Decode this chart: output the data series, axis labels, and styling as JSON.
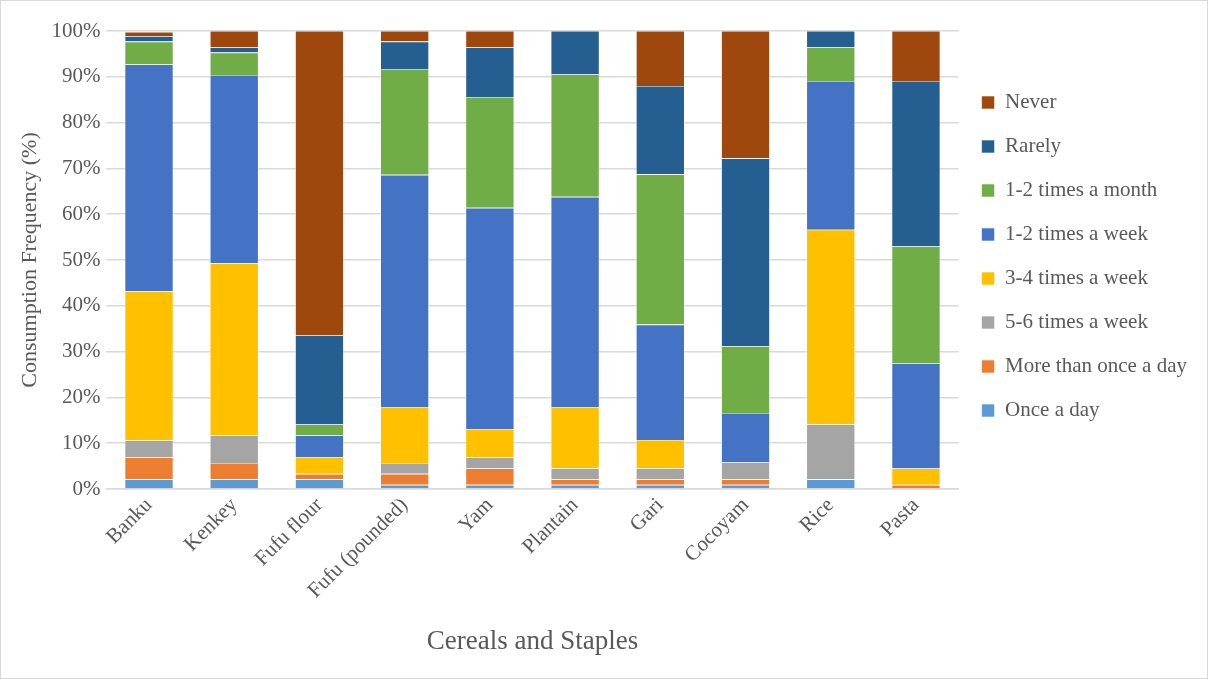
{
  "chart_data": {
    "type": "bar",
    "stacked": true,
    "xlabel": "Cereals and Staples",
    "ylabel": "Consumption Frequency (%)",
    "categories": [
      "Banku",
      "Kenkey",
      "Fufu flour",
      "Fufu (pounded)",
      "Yam",
      "Plantain",
      "Gari",
      "Cocoyam",
      "Rice",
      "Pasta"
    ],
    "series": [
      {
        "name": "Once a day",
        "color": "#5b9bd5",
        "values": [
          2.1,
          2.1,
          2.1,
          0.9,
          0.9,
          0.9,
          0.9,
          0.9,
          2.1,
          0
        ]
      },
      {
        "name": "More than once a day",
        "color": "#ed7d31",
        "values": [
          4.8,
          3.6,
          1.2,
          2.4,
          3.6,
          1.2,
          1.2,
          1.2,
          0,
          0.9
        ]
      },
      {
        "name": "5-6 times a week",
        "color": "#a5a5a5",
        "values": [
          3.7,
          6.0,
          0,
          2.4,
          2.4,
          2.4,
          2.4,
          3.7,
          12.0,
          0
        ]
      },
      {
        "name": "3-4 times a week",
        "color": "#ffc000",
        "values": [
          32.6,
          37.6,
          3.6,
          12.2,
          6.2,
          13.4,
          6.2,
          0,
          42.5,
          3.6
        ]
      },
      {
        "name": "1-2 times a week",
        "color": "#4472c4",
        "values": [
          49.5,
          41.1,
          4.8,
          50.7,
          48.3,
          45.9,
          25.2,
          10.8,
          32.5,
          23.0
        ]
      },
      {
        "name": "1-2 times a month",
        "color": "#70ad47",
        "values": [
          5.0,
          4.9,
          2.4,
          23.1,
          24.2,
          26.7,
          32.8,
          14.6,
          7.3,
          25.5
        ]
      },
      {
        "name": "Rarely",
        "color": "#255e91",
        "values": [
          1.2,
          1.1,
          19.5,
          6.0,
          10.8,
          9.5,
          19.3,
          41.0,
          3.6,
          36.1
        ]
      },
      {
        "name": "Never",
        "color": "#9e480e",
        "values": [
          0.9,
          3.6,
          66.4,
          2.3,
          3.6,
          0,
          12.0,
          27.8,
          0,
          10.9
        ]
      }
    ],
    "ylim": [
      0,
      100
    ],
    "yticks": [
      {
        "value": 0,
        "label": "0%"
      },
      {
        "value": 10,
        "label": "10%"
      },
      {
        "value": 20,
        "label": "20%"
      },
      {
        "value": 30,
        "label": "30%"
      },
      {
        "value": 40,
        "label": "40%"
      },
      {
        "value": 50,
        "label": "50%"
      },
      {
        "value": 60,
        "label": "60%"
      },
      {
        "value": 70,
        "label": "70%"
      },
      {
        "value": 80,
        "label": "80%"
      },
      {
        "value": 90,
        "label": "90%"
      },
      {
        "value": 100,
        "label": "100%"
      }
    ],
    "grid": "y",
    "legend": "right"
  }
}
